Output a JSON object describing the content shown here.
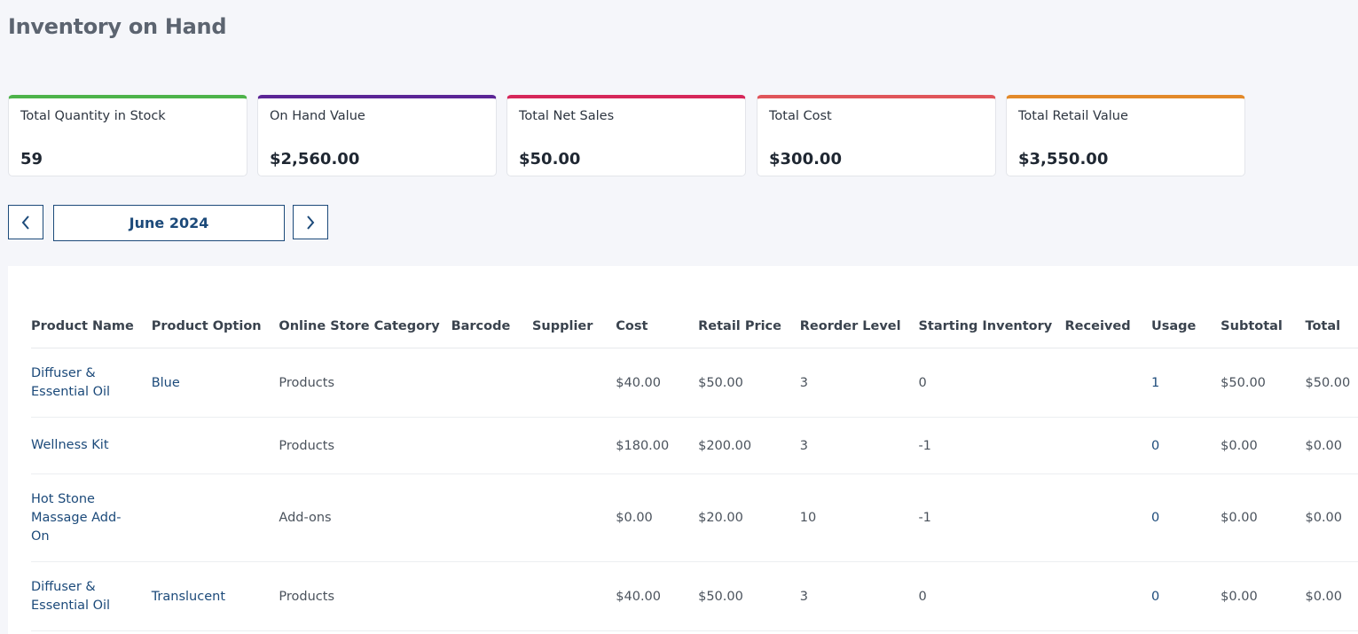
{
  "page": {
    "title": "Inventory on Hand"
  },
  "summary_cards": [
    {
      "label": "Total Quantity in Stock",
      "value": "59",
      "accent": "#4db34a"
    },
    {
      "label": "On Hand Value",
      "value": "$2,560.00",
      "accent": "#5b2596"
    },
    {
      "label": "Total Net Sales",
      "value": "$50.00",
      "accent": "#d6275a"
    },
    {
      "label": "Total Cost",
      "value": "$300.00",
      "accent": "#e0555a"
    },
    {
      "label": "Total Retail Value",
      "value": "$3,550.00",
      "accent": "#e38a2a"
    }
  ],
  "period": {
    "label": "June 2024",
    "prev_icon": "chevron-left-icon",
    "next_icon": "chevron-right-icon"
  },
  "table": {
    "headers": [
      "Product Name",
      "Product Option",
      "Online Store Category",
      "Barcode",
      "Supplier",
      "Cost",
      "Retail Price",
      "Reorder Level",
      "Starting Inventory",
      "Received",
      "Usage",
      "Subtotal",
      "Total"
    ],
    "rows": [
      {
        "name": "Diffuser & Essential Oil",
        "option": "Blue",
        "category": "Products",
        "barcode": "",
        "supplier": "",
        "cost": "$40.00",
        "retail": "$50.00",
        "reorder": "3",
        "starting": "0",
        "received": "",
        "usage": "1",
        "subtotal": "$50.00",
        "total": "$50.00"
      },
      {
        "name": "Wellness Kit",
        "option": "",
        "category": "Products",
        "barcode": "",
        "supplier": "",
        "cost": "$180.00",
        "retail": "$200.00",
        "reorder": "3",
        "starting": "-1",
        "received": "",
        "usage": "0",
        "subtotal": "$0.00",
        "total": "$0.00"
      },
      {
        "name": "Hot Stone Massage Add-On",
        "option": "",
        "category": "Add-ons",
        "barcode": "",
        "supplier": "",
        "cost": "$0.00",
        "retail": "$20.00",
        "reorder": "10",
        "starting": "-1",
        "received": "",
        "usage": "0",
        "subtotal": "$0.00",
        "total": "$0.00"
      },
      {
        "name": "Diffuser & Essential Oil",
        "option": "Translucent",
        "category": "Products",
        "barcode": "",
        "supplier": "",
        "cost": "$40.00",
        "retail": "$50.00",
        "reorder": "3",
        "starting": "0",
        "received": "",
        "usage": "0",
        "subtotal": "$0.00",
        "total": "$0.00"
      }
    ]
  }
}
